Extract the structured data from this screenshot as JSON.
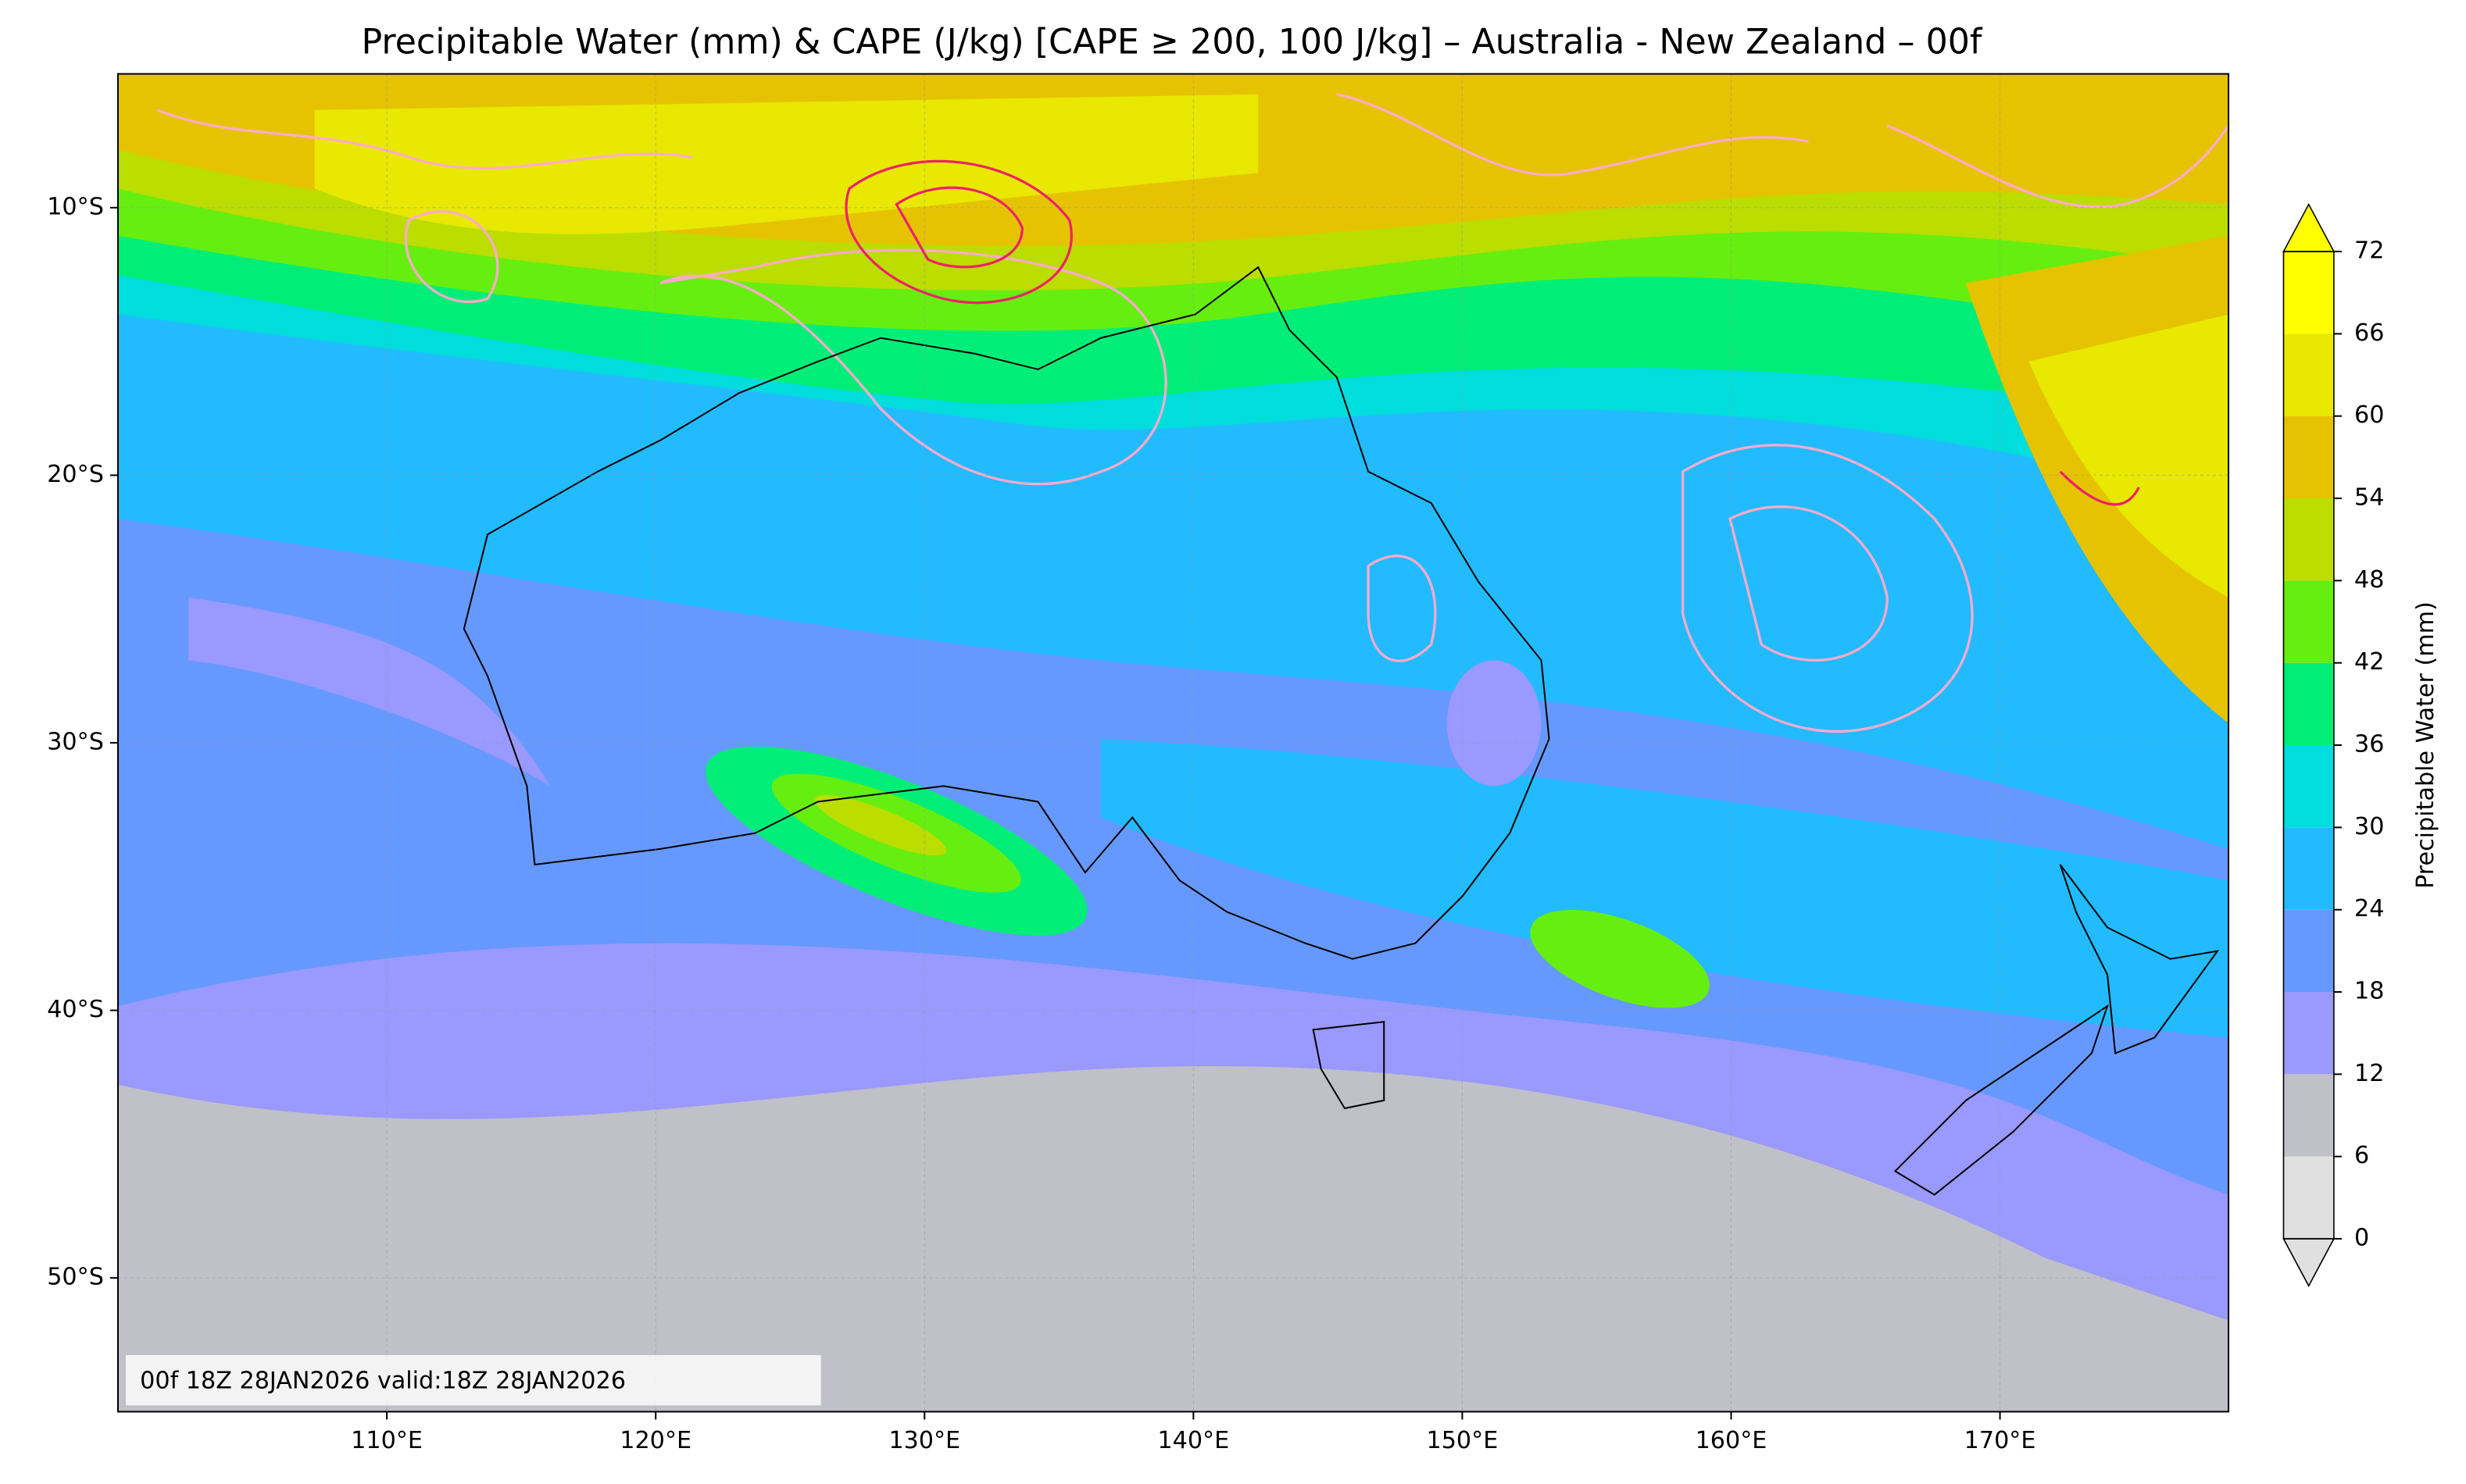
{
  "title": "Precipitable Water (mm) & CAPE (J/kg) [CAPE ≥ 200, 100 J/kg] – Australia - New Zealand – 00f",
  "map": {
    "xlim": [
      100,
      178.5
    ],
    "ylim": [
      -55,
      -5
    ],
    "lon_ticks": [
      {
        "value": 110,
        "label": "110°E"
      },
      {
        "value": 120,
        "label": "120°E"
      },
      {
        "value": 130,
        "label": "130°E"
      },
      {
        "value": 140,
        "label": "140°E"
      },
      {
        "value": 150,
        "label": "150°E"
      },
      {
        "value": 160,
        "label": "160°E"
      },
      {
        "value": 170,
        "label": "170°E"
      }
    ],
    "lat_ticks": [
      {
        "value": -10,
        "label": "10°S"
      },
      {
        "value": -20,
        "label": "20°S"
      },
      {
        "value": -30,
        "label": "30°S"
      },
      {
        "value": -40,
        "label": "40°S"
      },
      {
        "value": -50,
        "label": "50°S"
      }
    ]
  },
  "colorbar": {
    "label": "Precipitable Water (mm)",
    "ticks": [
      0,
      6,
      12,
      18,
      24,
      30,
      36,
      42,
      48,
      54,
      60,
      66,
      72
    ],
    "colors": [
      "#e0e0e0",
      "#c0c0c8",
      "#9999ff",
      "#6699ff",
      "#22bbff",
      "#00dddd",
      "#00ee77",
      "#66ee11",
      "#bbdd00",
      "#e6c300",
      "#e8e800",
      "#ffff00"
    ],
    "under_color": "#e0e0e0",
    "over_color": "#ffff00"
  },
  "annotation": "00f 18Z 28JAN2026 valid:18Z 28JAN2026"
}
